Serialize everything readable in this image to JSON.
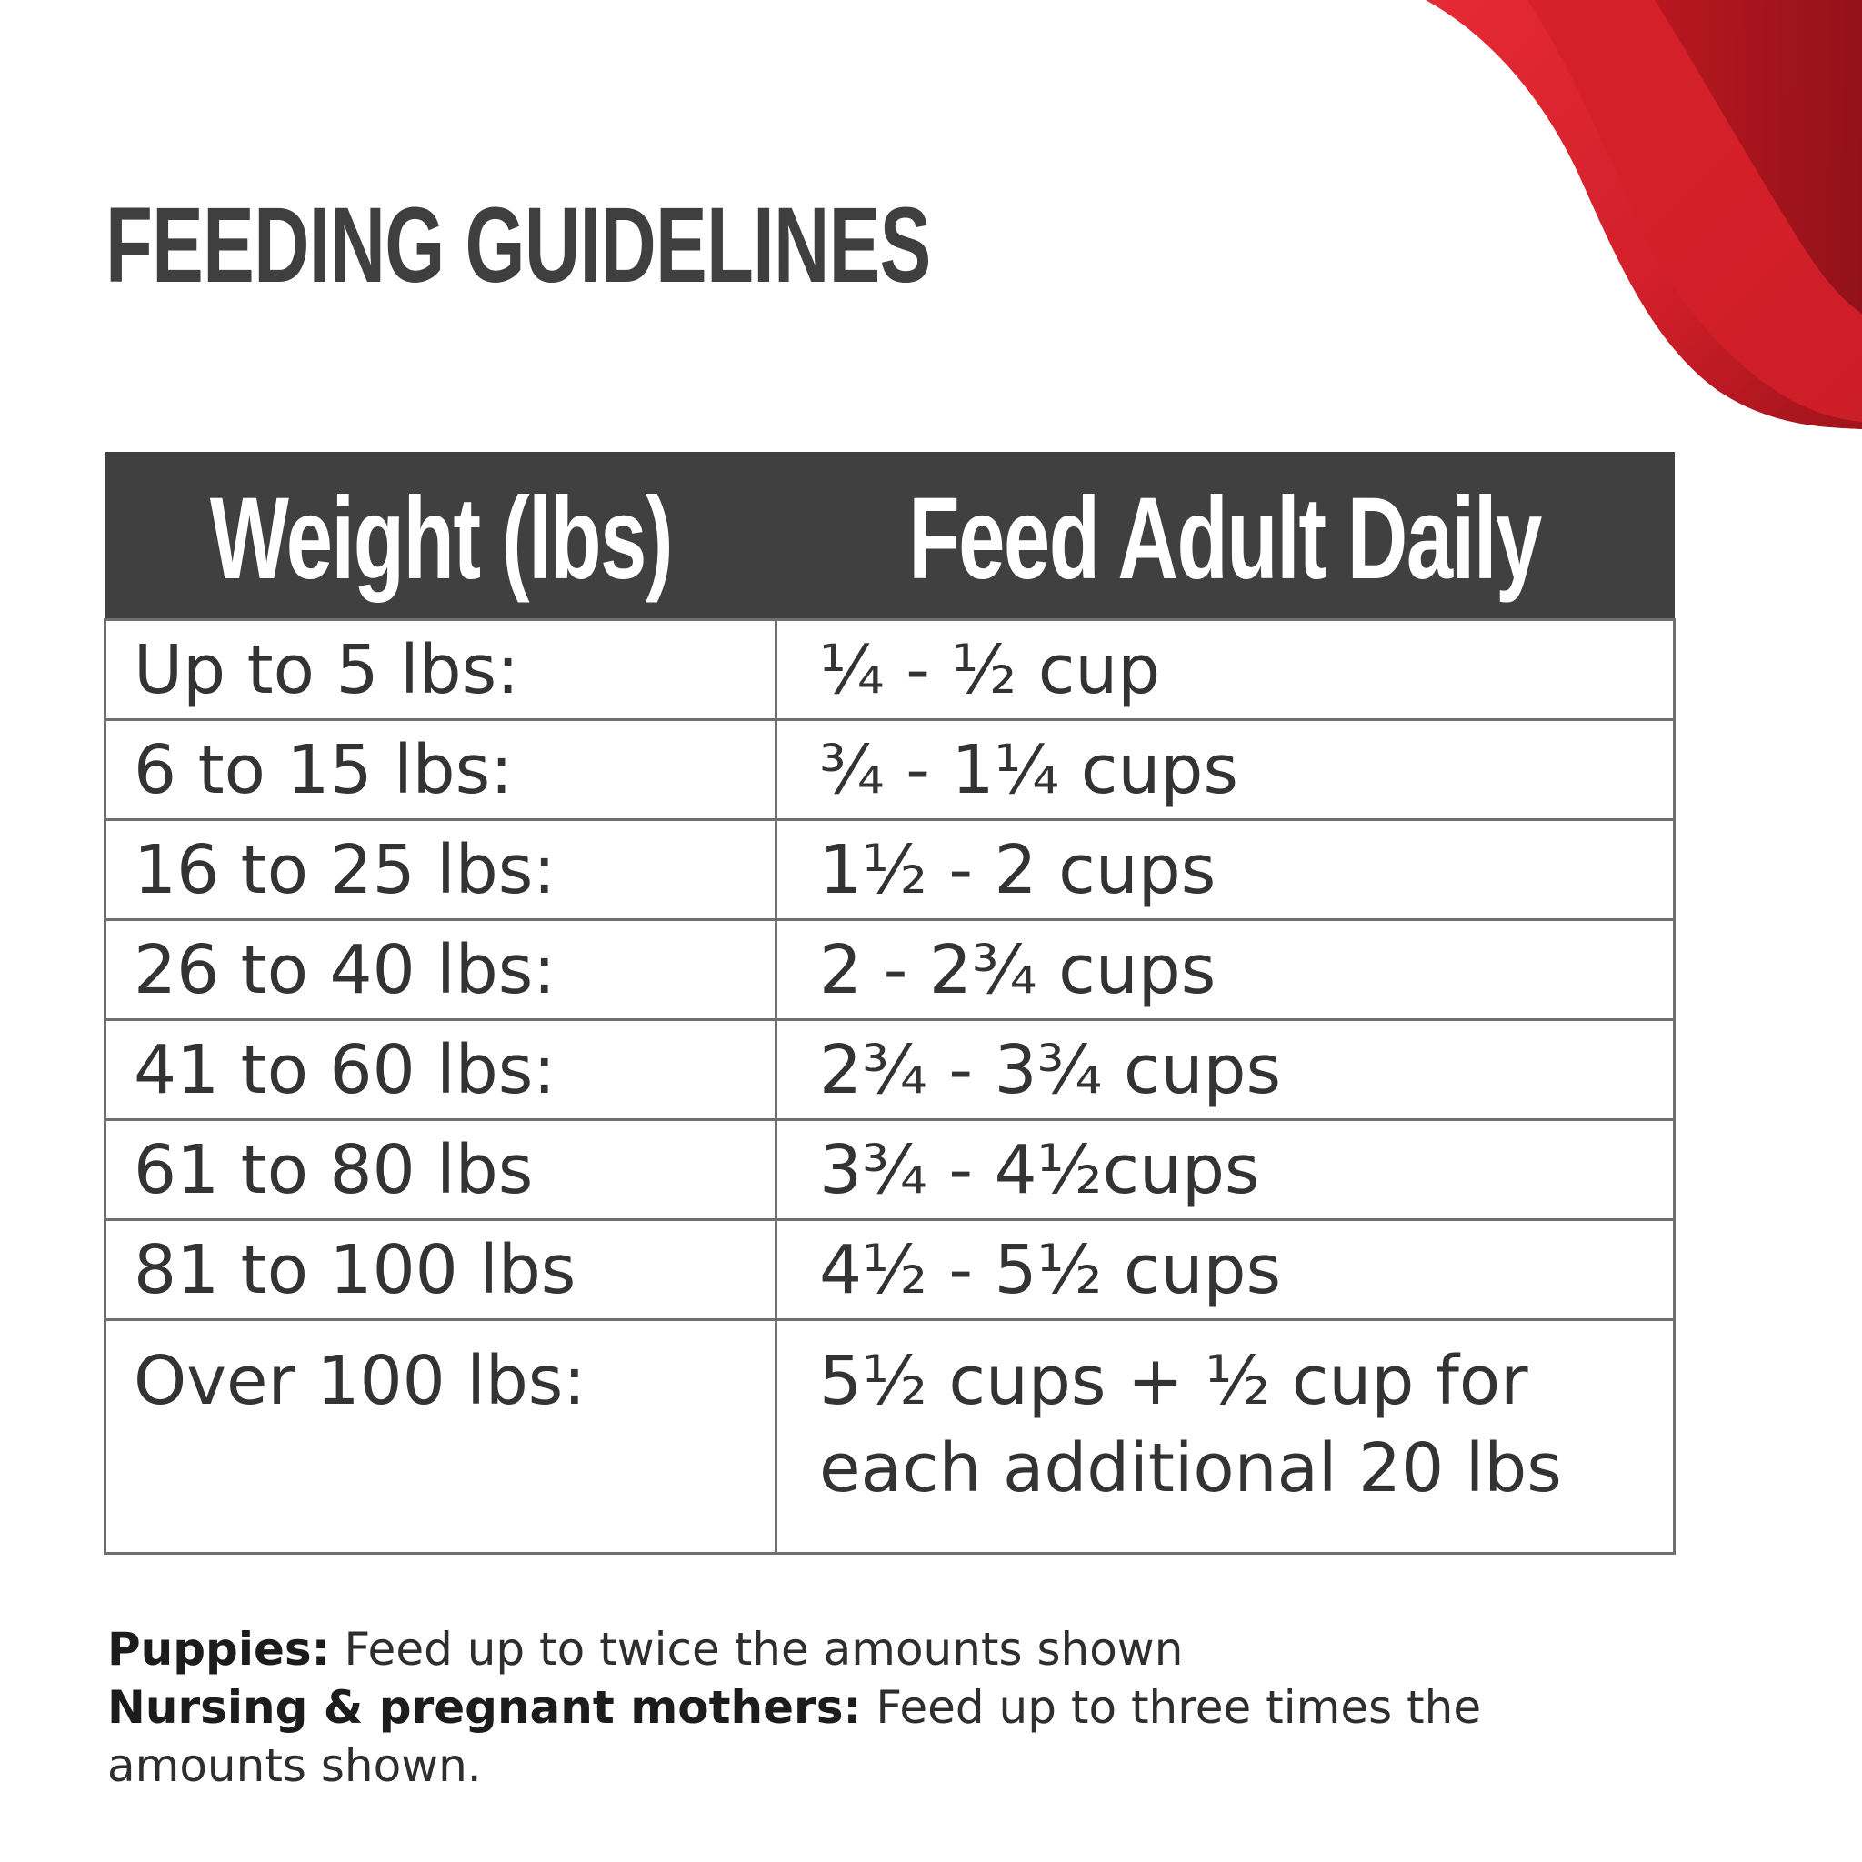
{
  "title": "FEEDING GUIDELINES",
  "colors": {
    "accent_red": "#d9232e",
    "accent_red_dark": "#a0131b",
    "header_bg": "#404040",
    "text": "#333333"
  },
  "table": {
    "headers": [
      "Weight (lbs)",
      "Feed Adult Daily"
    ],
    "rows": [
      {
        "weight": "Up to 5 lbs:",
        "amount": "¼ - ½ cup"
      },
      {
        "weight": "6 to 15 lbs:",
        "amount": "¾ - 1¼ cups"
      },
      {
        "weight": "16 to 25 lbs:",
        "amount": "1½ - 2 cups"
      },
      {
        "weight": "26 to 40 lbs:",
        "amount": "2 - 2¾ cups"
      },
      {
        "weight": "41 to 60 lbs:",
        "amount": "2¾ - 3¾ cups"
      },
      {
        "weight": "61 to 80 lbs",
        "amount": "3¾ - 4½cups"
      },
      {
        "weight": "81 to 100 lbs",
        "amount": "4½ - 5½ cups"
      },
      {
        "weight": "Over 100 lbs:",
        "amount": "5½ cups + ½ cup for each additional 20 lbs"
      }
    ]
  },
  "notes": {
    "puppies_label": "Puppies:",
    "puppies_text": " Feed up to twice the amounts shown",
    "nursing_label": "Nursing & pregnant mothers:",
    "nursing_text": " Feed up to three times the amounts shown."
  }
}
